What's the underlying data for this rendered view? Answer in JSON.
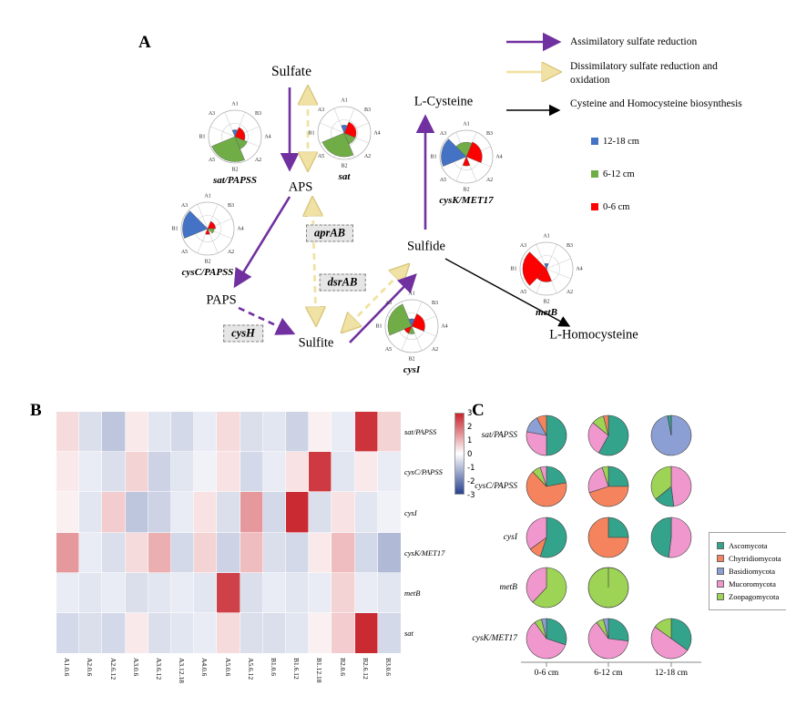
{
  "panel_labels": {
    "a": "A",
    "b": "B",
    "c": "C"
  },
  "colors": {
    "assimilatory": "#7030A0",
    "dissimilatory": "#F0E2A4",
    "biosynthesis": "#000000",
    "heat_positive": "#C8242C",
    "heat_negative": "#27418F"
  },
  "panelA": {
    "nodes": {
      "sulfate": "Sulfate",
      "aps": "APS",
      "paps": "PAPS",
      "sulfite": "Sulfite",
      "sulfide": "Sulfide",
      "lcysteine": "L-Cysteine",
      "lhomocysteine": "L-Homocysteine"
    },
    "gene_boxes": {
      "aprAB": "aprAB",
      "dsrAB": "dsrAB",
      "cysH": "cysH"
    },
    "arrow_legend": [
      {
        "name": "assimilatory",
        "label": "Assimilatory sulfate reduction",
        "color": "#7030A0"
      },
      {
        "name": "dissimilatory",
        "label": "Dissimilatory sulfate reduction and oxidation",
        "color": "#F0E2A4"
      },
      {
        "name": "biosynthesis",
        "label": "Cysteine and Homocysteine biosynthesis",
        "color": "#000000"
      }
    ],
    "depth_legend": [
      {
        "label": "12-18 cm",
        "color": "#4472C4"
      },
      {
        "label": "6-12 cm",
        "color": "#70AD47"
      },
      {
        "label": "0-6 cm",
        "color": "#FF0000"
      }
    ]
  },
  "chart_data": [
    {
      "id": "rose_charts",
      "type": "polar-bar",
      "sector_labels": [
        "A1",
        "B3",
        "A4",
        "A2",
        "B2",
        "A5",
        "B1",
        "A3"
      ],
      "depth_colors": {
        "12-18 cm": "#4472C4",
        "6-12 cm": "#70AD47",
        "0-6 cm": "#FF0000"
      },
      "charts": [
        {
          "gene": "sat/PAPSS",
          "wedges": [
            {
              "depth": "6-12 cm",
              "from": 157.5,
              "to": 247.5,
              "r": 0.95
            },
            {
              "depth": "6-12 cm",
              "from": 112.5,
              "to": 157.5,
              "r": 0.5
            },
            {
              "depth": "0-6 cm",
              "from": 22.5,
              "to": 112.5,
              "r": 0.38
            },
            {
              "depth": "12-18 cm",
              "from": -22.5,
              "to": 22.5,
              "r": 0.26
            }
          ]
        },
        {
          "gene": "sat",
          "wedges": [
            {
              "depth": "6-12 cm",
              "from": 157.5,
              "to": 247.5,
              "r": 0.9
            },
            {
              "depth": "6-12 cm",
              "from": 112.5,
              "to": 157.5,
              "r": 0.45
            },
            {
              "depth": "0-6 cm",
              "from": 22.5,
              "to": 112.5,
              "r": 0.45
            },
            {
              "depth": "12-18 cm",
              "from": -22.5,
              "to": 22.5,
              "r": 0.3
            }
          ]
        },
        {
          "gene": "cysC/PAPSS",
          "wedges": [
            {
              "depth": "12-18 cm",
              "from": 247.5,
              "to": 315,
              "r": 0.95
            },
            {
              "depth": "0-6 cm",
              "from": 22.5,
              "to": 90,
              "r": 0.3
            },
            {
              "depth": "6-12 cm",
              "from": 90,
              "to": 135,
              "r": 0.25
            },
            {
              "depth": "0-6 cm",
              "from": 157.5,
              "to": 202.5,
              "r": 0.22
            }
          ]
        },
        {
          "gene": "cysK/MET17",
          "wedges": [
            {
              "depth": "12-18 cm",
              "from": 247.5,
              "to": 315,
              "r": 0.95
            },
            {
              "depth": "0-6 cm",
              "from": 22.5,
              "to": 112.5,
              "r": 0.6
            },
            {
              "depth": "6-12 cm",
              "from": -45,
              "to": 22.5,
              "r": 0.55
            },
            {
              "depth": "0-6 cm",
              "from": 157.5,
              "to": 202.5,
              "r": 0.35
            }
          ]
        },
        {
          "gene": "metB",
          "wedges": [
            {
              "depth": "0-6 cm",
              "from": 225,
              "to": 315,
              "r": 0.9
            },
            {
              "depth": "0-6 cm",
              "from": 157.5,
              "to": 225,
              "r": 0.5
            },
            {
              "depth": "12-18 cm",
              "from": -22.5,
              "to": 22.5,
              "r": 0.2
            }
          ]
        },
        {
          "gene": "cysI",
          "wedges": [
            {
              "depth": "6-12 cm",
              "from": 247.5,
              "to": 337.5,
              "r": 0.9
            },
            {
              "depth": "0-6 cm",
              "from": 22.5,
              "to": 112.5,
              "r": 0.5
            },
            {
              "depth": "12-18 cm",
              "from": -22.5,
              "to": 22.5,
              "r": 0.28
            },
            {
              "depth": "6-12 cm",
              "from": 157.5,
              "to": 202.5,
              "r": 0.3
            },
            {
              "depth": "0-6 cm",
              "from": 202.5,
              "to": 247.5,
              "r": 0.3
            }
          ]
        }
      ]
    },
    {
      "id": "heatmap",
      "type": "heatmap",
      "rows": [
        "sat/PAPSS",
        "cysC/PAPSS",
        "cysI",
        "cysK/MET17",
        "metB",
        "sat"
      ],
      "columns": [
        "A1.0.6",
        "A2.0.6",
        "A2.6.12",
        "A3.0.6",
        "A3.6.12",
        "A3.12.18",
        "A4.0.6",
        "A5.0.6",
        "A5.6.12",
        "B1.0.6",
        "B1.6.12",
        "B1.12.18",
        "B2.0.6",
        "B2.6.12",
        "B3.0.6"
      ],
      "values": [
        [
          0.5,
          -0.5,
          -0.9,
          0.3,
          -0.4,
          -0.6,
          -0.3,
          0.5,
          -0.5,
          -0.4,
          -0.7,
          0.2,
          -0.3,
          2.8,
          0.6
        ],
        [
          0.3,
          -0.3,
          -0.5,
          0.6,
          -0.7,
          -0.4,
          -0.2,
          0.4,
          -0.6,
          -0.3,
          0.4,
          2.7,
          -0.4,
          0.3,
          -0.3
        ],
        [
          0.2,
          -0.4,
          0.7,
          -0.9,
          -0.7,
          -0.3,
          0.4,
          -0.5,
          1.4,
          -0.6,
          2.9,
          -0.5,
          0.4,
          -0.4,
          -0.2
        ],
        [
          1.4,
          -0.3,
          -0.5,
          0.5,
          1.1,
          -0.6,
          0.6,
          -0.7,
          0.9,
          -0.5,
          -0.6,
          0.3,
          0.9,
          -0.6,
          -1.1
        ],
        [
          -0.3,
          -0.4,
          -0.3,
          -0.5,
          -0.4,
          -0.3,
          -0.4,
          2.6,
          -0.5,
          -0.3,
          -0.4,
          -0.3,
          0.6,
          -0.3,
          -0.4
        ],
        [
          -0.6,
          -0.5,
          -0.6,
          0.3,
          -0.5,
          -0.4,
          -0.3,
          0.5,
          -0.5,
          -0.5,
          -0.4,
          0.2,
          0.7,
          2.9,
          -0.6
        ]
      ],
      "scale": {
        "min": -3,
        "max": 3,
        "ticks": [
          3,
          2,
          1,
          0,
          -1,
          -2,
          -3
        ]
      }
    },
    {
      "id": "pie_grid",
      "type": "pie",
      "columns": [
        "0-6 cm",
        "6-12 cm",
        "12-18 cm"
      ],
      "legend": [
        {
          "taxon": "Ascomycota",
          "color": "#33A38B"
        },
        {
          "taxon": "Chytridiomycota",
          "color": "#F5845E"
        },
        {
          "taxon": "Basidiomycota",
          "color": "#8C9FD4"
        },
        {
          "taxon": "Mucoromycota",
          "color": "#F097CE"
        },
        {
          "taxon": "Zoopagomycota",
          "color": "#9ED455"
        }
      ],
      "rows": [
        {
          "gene": "sat/PAPSS",
          "pies": [
            {
              "column": "0-6 cm",
              "slices": [
                {
                  "taxon": "Ascomycota",
                  "pct": 50
                },
                {
                  "taxon": "Mucoromycota",
                  "pct": 28
                },
                {
                  "taxon": "Basidiomycota",
                  "pct": 14
                },
                {
                  "taxon": "Chytridiomycota",
                  "pct": 8
                }
              ]
            },
            {
              "column": "6-12 cm",
              "slices": [
                {
                  "taxon": "Ascomycota",
                  "pct": 58
                },
                {
                  "taxon": "Mucoromycota",
                  "pct": 28
                },
                {
                  "taxon": "Zoopagomycota",
                  "pct": 10
                },
                {
                  "taxon": "Chytridiomycota",
                  "pct": 4
                }
              ]
            },
            {
              "column": "12-18 cm",
              "slices": [
                {
                  "taxon": "Basidiomycota",
                  "pct": 97
                },
                {
                  "taxon": "Ascomycota",
                  "pct": 3
                }
              ]
            }
          ]
        },
        {
          "gene": "cysC/PAPSS",
          "pies": [
            {
              "column": "0-6 cm",
              "slices": [
                {
                  "taxon": "Ascomycota",
                  "pct": 22
                },
                {
                  "taxon": "Chytridiomycota",
                  "pct": 66
                },
                {
                  "taxon": "Zoopagomycota",
                  "pct": 7
                },
                {
                  "taxon": "Mucoromycota",
                  "pct": 5
                }
              ]
            },
            {
              "column": "6-12 cm",
              "slices": [
                {
                  "taxon": "Ascomycota",
                  "pct": 25
                },
                {
                  "taxon": "Chytridiomycota",
                  "pct": 45
                },
                {
                  "taxon": "Mucoromycota",
                  "pct": 25
                },
                {
                  "taxon": "Zoopagomycota",
                  "pct": 5
                }
              ]
            },
            {
              "column": "12-18 cm",
              "slices": [
                {
                  "taxon": "Mucoromycota",
                  "pct": 48
                },
                {
                  "taxon": "Ascomycota",
                  "pct": 16
                },
                {
                  "taxon": "Zoopagomycota",
                  "pct": 36
                }
              ]
            }
          ]
        },
        {
          "gene": "cysI",
          "pies": [
            {
              "column": "0-6 cm",
              "slices": [
                {
                  "taxon": "Ascomycota",
                  "pct": 55
                },
                {
                  "taxon": "Chytridiomycota",
                  "pct": 10
                },
                {
                  "taxon": "Mucoromycota",
                  "pct": 35
                }
              ]
            },
            {
              "column": "6-12 cm",
              "slices": [
                {
                  "taxon": "Ascomycota",
                  "pct": 25
                },
                {
                  "taxon": "Chytridiomycota",
                  "pct": 75
                }
              ]
            },
            {
              "column": "12-18 cm",
              "slices": [
                {
                  "taxon": "Mucoromycota",
                  "pct": 52
                },
                {
                  "taxon": "Ascomycota",
                  "pct": 48
                }
              ]
            }
          ]
        },
        {
          "gene": "metB",
          "pies": [
            {
              "column": "0-6 cm",
              "slices": [
                {
                  "taxon": "Zoopagomycota",
                  "pct": 62
                },
                {
                  "taxon": "Mucoromycota",
                  "pct": 38
                }
              ]
            },
            {
              "column": "6-12 cm",
              "slices": [
                {
                  "taxon": "Zoopagomycota",
                  "pct": 100
                }
              ]
            }
          ]
        },
        {
          "gene": "cysK/MET17",
          "pies": [
            {
              "column": "0-6 cm",
              "slices": [
                {
                  "taxon": "Ascomycota",
                  "pct": 30
                },
                {
                  "taxon": "Mucoromycota",
                  "pct": 60
                },
                {
                  "taxon": "Zoopagomycota",
                  "pct": 6
                },
                {
                  "taxon": "Basidiomycota",
                  "pct": 4
                }
              ]
            },
            {
              "column": "6-12 cm",
              "slices": [
                {
                  "taxon": "Ascomycota",
                  "pct": 27
                },
                {
                  "taxon": "Mucoromycota",
                  "pct": 63
                },
                {
                  "taxon": "Zoopagomycota",
                  "pct": 6
                },
                {
                  "taxon": "Basidiomycota",
                  "pct": 4
                }
              ]
            },
            {
              "column": "12-18 cm",
              "slices": [
                {
                  "taxon": "Ascomycota",
                  "pct": 35
                },
                {
                  "taxon": "Mucoromycota",
                  "pct": 50
                },
                {
                  "taxon": "Zoopagomycota",
                  "pct": 15
                }
              ]
            }
          ]
        }
      ]
    }
  ]
}
